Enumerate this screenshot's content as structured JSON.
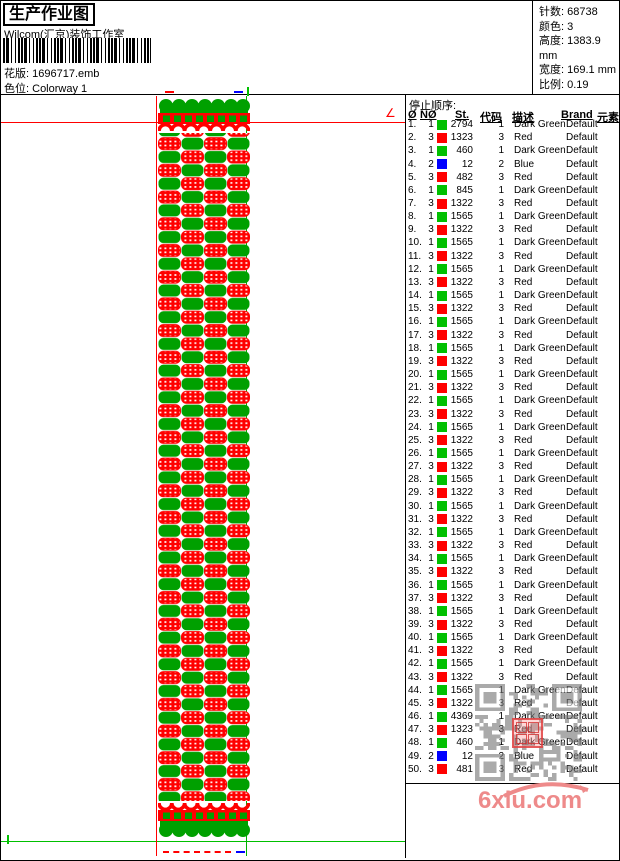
{
  "header": {
    "title": "生产作业图",
    "studio": "Wilcom(汇京)装饰工作室",
    "pattern_label": "花版:",
    "pattern_value": "1696717.emb",
    "colorway_label": "色位:",
    "colorway_value": "Colorway 1",
    "stats": [
      {
        "label": "针数:",
        "value": "68738"
      },
      {
        "label": "颜色:",
        "value": "3"
      },
      {
        "label": "高度:",
        "value": "1383.9 mm"
      },
      {
        "label": "宽度:",
        "value": "169.1 mm"
      },
      {
        "label": "比例:",
        "value": "0.19"
      }
    ]
  },
  "stop_sequence": {
    "title": "停止顺序:",
    "columns": [
      "Ø",
      "NØ",
      "St.",
      "代码",
      "描述",
      "Brand",
      "元素"
    ],
    "rows": [
      {
        "idx": "1.",
        "n": "1",
        "sw": "green",
        "st": "2794",
        "code": "1",
        "desc": "Dark Green",
        "brand": "Default"
      },
      {
        "idx": "2.",
        "n": "3",
        "sw": "red",
        "st": "1323",
        "code": "3",
        "desc": "Red",
        "brand": "Default"
      },
      {
        "idx": "3.",
        "n": "1",
        "sw": "green",
        "st": "460",
        "code": "1",
        "desc": "Dark Green",
        "brand": "Default"
      },
      {
        "idx": "4.",
        "n": "2",
        "sw": "blue",
        "st": "12",
        "code": "2",
        "desc": "Blue",
        "brand": "Default"
      },
      {
        "idx": "5.",
        "n": "3",
        "sw": "red",
        "st": "482",
        "code": "3",
        "desc": "Red",
        "brand": "Default"
      },
      {
        "idx": "6.",
        "n": "1",
        "sw": "green",
        "st": "845",
        "code": "1",
        "desc": "Dark Green",
        "brand": "Default"
      },
      {
        "idx": "7.",
        "n": "3",
        "sw": "red",
        "st": "1322",
        "code": "3",
        "desc": "Red",
        "brand": "Default"
      },
      {
        "idx": "8.",
        "n": "1",
        "sw": "green",
        "st": "1565",
        "code": "1",
        "desc": "Dark Green",
        "brand": "Default"
      },
      {
        "idx": "9.",
        "n": "3",
        "sw": "red",
        "st": "1322",
        "code": "3",
        "desc": "Red",
        "brand": "Default"
      },
      {
        "idx": "10.",
        "n": "1",
        "sw": "green",
        "st": "1565",
        "code": "1",
        "desc": "Dark Green",
        "brand": "Default"
      },
      {
        "idx": "11.",
        "n": "3",
        "sw": "red",
        "st": "1322",
        "code": "3",
        "desc": "Red",
        "brand": "Default"
      },
      {
        "idx": "12.",
        "n": "1",
        "sw": "green",
        "st": "1565",
        "code": "1",
        "desc": "Dark Green",
        "brand": "Default"
      },
      {
        "idx": "13.",
        "n": "3",
        "sw": "red",
        "st": "1322",
        "code": "3",
        "desc": "Red",
        "brand": "Default"
      },
      {
        "idx": "14.",
        "n": "1",
        "sw": "green",
        "st": "1565",
        "code": "1",
        "desc": "Dark Green",
        "brand": "Default"
      },
      {
        "idx": "15.",
        "n": "3",
        "sw": "red",
        "st": "1322",
        "code": "3",
        "desc": "Red",
        "brand": "Default"
      },
      {
        "idx": "16.",
        "n": "1",
        "sw": "green",
        "st": "1565",
        "code": "1",
        "desc": "Dark Green",
        "brand": "Default"
      },
      {
        "idx": "17.",
        "n": "3",
        "sw": "red",
        "st": "1322",
        "code": "3",
        "desc": "Red",
        "brand": "Default"
      },
      {
        "idx": "18.",
        "n": "1",
        "sw": "green",
        "st": "1565",
        "code": "1",
        "desc": "Dark Green",
        "brand": "Default"
      },
      {
        "idx": "19.",
        "n": "3",
        "sw": "red",
        "st": "1322",
        "code": "3",
        "desc": "Red",
        "brand": "Default"
      },
      {
        "idx": "20.",
        "n": "1",
        "sw": "green",
        "st": "1565",
        "code": "1",
        "desc": "Dark Green",
        "brand": "Default"
      },
      {
        "idx": "21.",
        "n": "3",
        "sw": "red",
        "st": "1322",
        "code": "3",
        "desc": "Red",
        "brand": "Default"
      },
      {
        "idx": "22.",
        "n": "1",
        "sw": "green",
        "st": "1565",
        "code": "1",
        "desc": "Dark Green",
        "brand": "Default"
      },
      {
        "idx": "23.",
        "n": "3",
        "sw": "red",
        "st": "1322",
        "code": "3",
        "desc": "Red",
        "brand": "Default"
      },
      {
        "idx": "24.",
        "n": "1",
        "sw": "green",
        "st": "1565",
        "code": "1",
        "desc": "Dark Green",
        "brand": "Default"
      },
      {
        "idx": "25.",
        "n": "3",
        "sw": "red",
        "st": "1322",
        "code": "3",
        "desc": "Red",
        "brand": "Default"
      },
      {
        "idx": "26.",
        "n": "1",
        "sw": "green",
        "st": "1565",
        "code": "1",
        "desc": "Dark Green",
        "brand": "Default"
      },
      {
        "idx": "27.",
        "n": "3",
        "sw": "red",
        "st": "1322",
        "code": "3",
        "desc": "Red",
        "brand": "Default"
      },
      {
        "idx": "28.",
        "n": "1",
        "sw": "green",
        "st": "1565",
        "code": "1",
        "desc": "Dark Green",
        "brand": "Default"
      },
      {
        "idx": "29.",
        "n": "3",
        "sw": "red",
        "st": "1322",
        "code": "3",
        "desc": "Red",
        "brand": "Default"
      },
      {
        "idx": "30.",
        "n": "1",
        "sw": "green",
        "st": "1565",
        "code": "1",
        "desc": "Dark Green",
        "brand": "Default"
      },
      {
        "idx": "31.",
        "n": "3",
        "sw": "red",
        "st": "1322",
        "code": "3",
        "desc": "Red",
        "brand": "Default"
      },
      {
        "idx": "32.",
        "n": "1",
        "sw": "green",
        "st": "1565",
        "code": "1",
        "desc": "Dark Green",
        "brand": "Default"
      },
      {
        "idx": "33.",
        "n": "3",
        "sw": "red",
        "st": "1322",
        "code": "3",
        "desc": "Red",
        "brand": "Default"
      },
      {
        "idx": "34.",
        "n": "1",
        "sw": "green",
        "st": "1565",
        "code": "1",
        "desc": "Dark Green",
        "brand": "Default"
      },
      {
        "idx": "35.",
        "n": "3",
        "sw": "red",
        "st": "1322",
        "code": "3",
        "desc": "Red",
        "brand": "Default"
      },
      {
        "idx": "36.",
        "n": "1",
        "sw": "green",
        "st": "1565",
        "code": "1",
        "desc": "Dark Green",
        "brand": "Default"
      },
      {
        "idx": "37.",
        "n": "3",
        "sw": "red",
        "st": "1322",
        "code": "3",
        "desc": "Red",
        "brand": "Default"
      },
      {
        "idx": "38.",
        "n": "1",
        "sw": "green",
        "st": "1565",
        "code": "1",
        "desc": "Dark Green",
        "brand": "Default"
      },
      {
        "idx": "39.",
        "n": "3",
        "sw": "red",
        "st": "1322",
        "code": "3",
        "desc": "Red",
        "brand": "Default"
      },
      {
        "idx": "40.",
        "n": "1",
        "sw": "green",
        "st": "1565",
        "code": "1",
        "desc": "Dark Green",
        "brand": "Default"
      },
      {
        "idx": "41.",
        "n": "3",
        "sw": "red",
        "st": "1322",
        "code": "3",
        "desc": "Red",
        "brand": "Default"
      },
      {
        "idx": "42.",
        "n": "1",
        "sw": "green",
        "st": "1565",
        "code": "1",
        "desc": "Dark Green",
        "brand": "Default"
      },
      {
        "idx": "43.",
        "n": "3",
        "sw": "red",
        "st": "1322",
        "code": "3",
        "desc": "Red",
        "brand": "Default"
      },
      {
        "idx": "44.",
        "n": "1",
        "sw": "green",
        "st": "1565",
        "code": "1",
        "desc": "Dark Green",
        "brand": "Default"
      },
      {
        "idx": "45.",
        "n": "3",
        "sw": "red",
        "st": "1322",
        "code": "3",
        "desc": "Red",
        "brand": "Default"
      },
      {
        "idx": "46.",
        "n": "1",
        "sw": "green",
        "st": "4369",
        "code": "1",
        "desc": "Dark Green",
        "brand": "Default"
      },
      {
        "idx": "47.",
        "n": "3",
        "sw": "red",
        "st": "1323",
        "code": "3",
        "desc": "Red",
        "brand": "Default"
      },
      {
        "idx": "48.",
        "n": "1",
        "sw": "green",
        "st": "460",
        "code": "1",
        "desc": "Dark Green",
        "brand": "Default"
      },
      {
        "idx": "49.",
        "n": "2",
        "sw": "blue",
        "st": "12",
        "code": "2",
        "desc": "Blue",
        "brand": "Default"
      },
      {
        "idx": "50.",
        "n": "3",
        "sw": "red",
        "st": "481",
        "code": "3",
        "desc": "Red",
        "brand": "Default"
      }
    ]
  },
  "watermark": {
    "logo_text": "6xiu.com"
  },
  "colors": {
    "design_green": "#00a000",
    "design_red": "#ff0000",
    "swatch_green": "#00c000",
    "swatch_red": "#ff0000",
    "swatch_blue": "#0000ff",
    "logo_pink": "#ee8a8a",
    "qr_gray": "#777777"
  }
}
